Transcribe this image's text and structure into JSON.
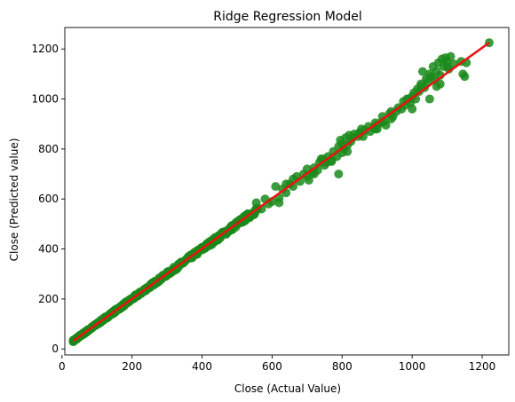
{
  "chart_data": {
    "type": "scatter",
    "title": "Ridge Regression Model",
    "xlabel": "Close (Actual Value)",
    "ylabel": "Close (Predicted value)",
    "xlim": [
      8,
      1276
    ],
    "ylim": [
      -24,
      1286
    ],
    "x_ticks": [
      0,
      200,
      400,
      600,
      800,
      1000,
      1200
    ],
    "y_ticks": [
      0,
      200,
      400,
      600,
      800,
      1000,
      1200
    ],
    "grid": false,
    "legend": "none",
    "colors": {
      "points": "#1a8a1a",
      "fit_line": "#ee1111"
    },
    "fit_line": {
      "x": [
        32,
        1220
      ],
      "y": [
        32,
        1225
      ]
    },
    "dense_band": {
      "x_range": [
        32,
        560
      ],
      "count": 400,
      "spread": 9
    },
    "points": [
      [
        580,
        600
      ],
      [
        590,
        580
      ],
      [
        600,
        590
      ],
      [
        610,
        650
      ],
      [
        620,
        605
      ],
      [
        630,
        640
      ],
      [
        640,
        625
      ],
      [
        650,
        660
      ],
      [
        660,
        650
      ],
      [
        670,
        690
      ],
      [
        680,
        670
      ],
      [
        690,
        700
      ],
      [
        700,
        690
      ],
      [
        705,
        675
      ],
      [
        715,
        705
      ],
      [
        720,
        725
      ],
      [
        730,
        715
      ],
      [
        735,
        745
      ],
      [
        745,
        760
      ],
      [
        750,
        735
      ],
      [
        760,
        770
      ],
      [
        770,
        750
      ],
      [
        775,
        790
      ],
      [
        785,
        770
      ],
      [
        790,
        810
      ],
      [
        795,
        835
      ],
      [
        800,
        820
      ],
      [
        805,
        800
      ],
      [
        810,
        845
      ],
      [
        815,
        815
      ],
      [
        820,
        855
      ],
      [
        825,
        830
      ],
      [
        830,
        845
      ],
      [
        835,
        860
      ],
      [
        845,
        850
      ],
      [
        850,
        865
      ],
      [
        855,
        880
      ],
      [
        860,
        850
      ],
      [
        865,
        875
      ],
      [
        875,
        890
      ],
      [
        880,
        870
      ],
      [
        890,
        885
      ],
      [
        895,
        905
      ],
      [
        900,
        895
      ],
      [
        910,
        905
      ],
      [
        915,
        930
      ],
      [
        920,
        910
      ],
      [
        925,
        895
      ],
      [
        935,
        940
      ],
      [
        940,
        920
      ],
      [
        945,
        930
      ],
      [
        955,
        950
      ],
      [
        960,
        965
      ],
      [
        970,
        960
      ],
      [
        975,
        990
      ],
      [
        980,
        975
      ],
      [
        985,
        1000
      ],
      [
        995,
        985
      ],
      [
        1000,
        1010
      ],
      [
        1005,
        1025
      ],
      [
        1010,
        1000
      ],
      [
        1015,
        1040
      ],
      [
        1020,
        1030
      ],
      [
        1025,
        1060
      ],
      [
        1030,
        1110
      ],
      [
        1035,
        1045
      ],
      [
        1040,
        1080
      ],
      [
        1045,
        1070
      ],
      [
        1050,
        1100
      ],
      [
        1055,
        1090
      ],
      [
        1060,
        1130
      ],
      [
        1065,
        1075
      ],
      [
        1070,
        1110
      ],
      [
        1075,
        1145
      ],
      [
        1080,
        1095
      ],
      [
        1085,
        1160
      ],
      [
        1090,
        1130
      ],
      [
        1095,
        1165
      ],
      [
        1100,
        1150
      ],
      [
        1105,
        1120
      ],
      [
        1110,
        1170
      ],
      [
        1140,
        1150
      ],
      [
        1145,
        1100
      ],
      [
        1150,
        1090
      ],
      [
        1155,
        1145
      ],
      [
        1220,
        1225
      ],
      [
        790,
        700
      ],
      [
        850,
        860
      ],
      [
        800,
        785
      ],
      [
        815,
        790
      ],
      [
        755,
        745
      ],
      [
        740,
        760
      ],
      [
        770,
        755
      ],
      [
        990,
        1000
      ],
      [
        1050,
        1000
      ],
      [
        1080,
        1060
      ],
      [
        1100,
        1130
      ],
      [
        620,
        585
      ],
      [
        640,
        660
      ],
      [
        660,
        680
      ],
      [
        700,
        720
      ],
      [
        555,
        585
      ],
      [
        570,
        560
      ],
      [
        720,
        700
      ],
      [
        900,
        880
      ],
      [
        1000,
        960
      ],
      [
        940,
        950
      ],
      [
        895,
        880
      ],
      [
        1070,
        1050
      ],
      [
        1120,
        1140
      ],
      [
        1025,
        1050
      ]
    ],
    "axes_labels": {
      "x_ticks": [
        "0",
        "200",
        "400",
        "600",
        "800",
        "1000",
        "1200"
      ],
      "y_ticks": [
        "0",
        "200",
        "400",
        "600",
        "800",
        "1000",
        "1200"
      ]
    }
  }
}
